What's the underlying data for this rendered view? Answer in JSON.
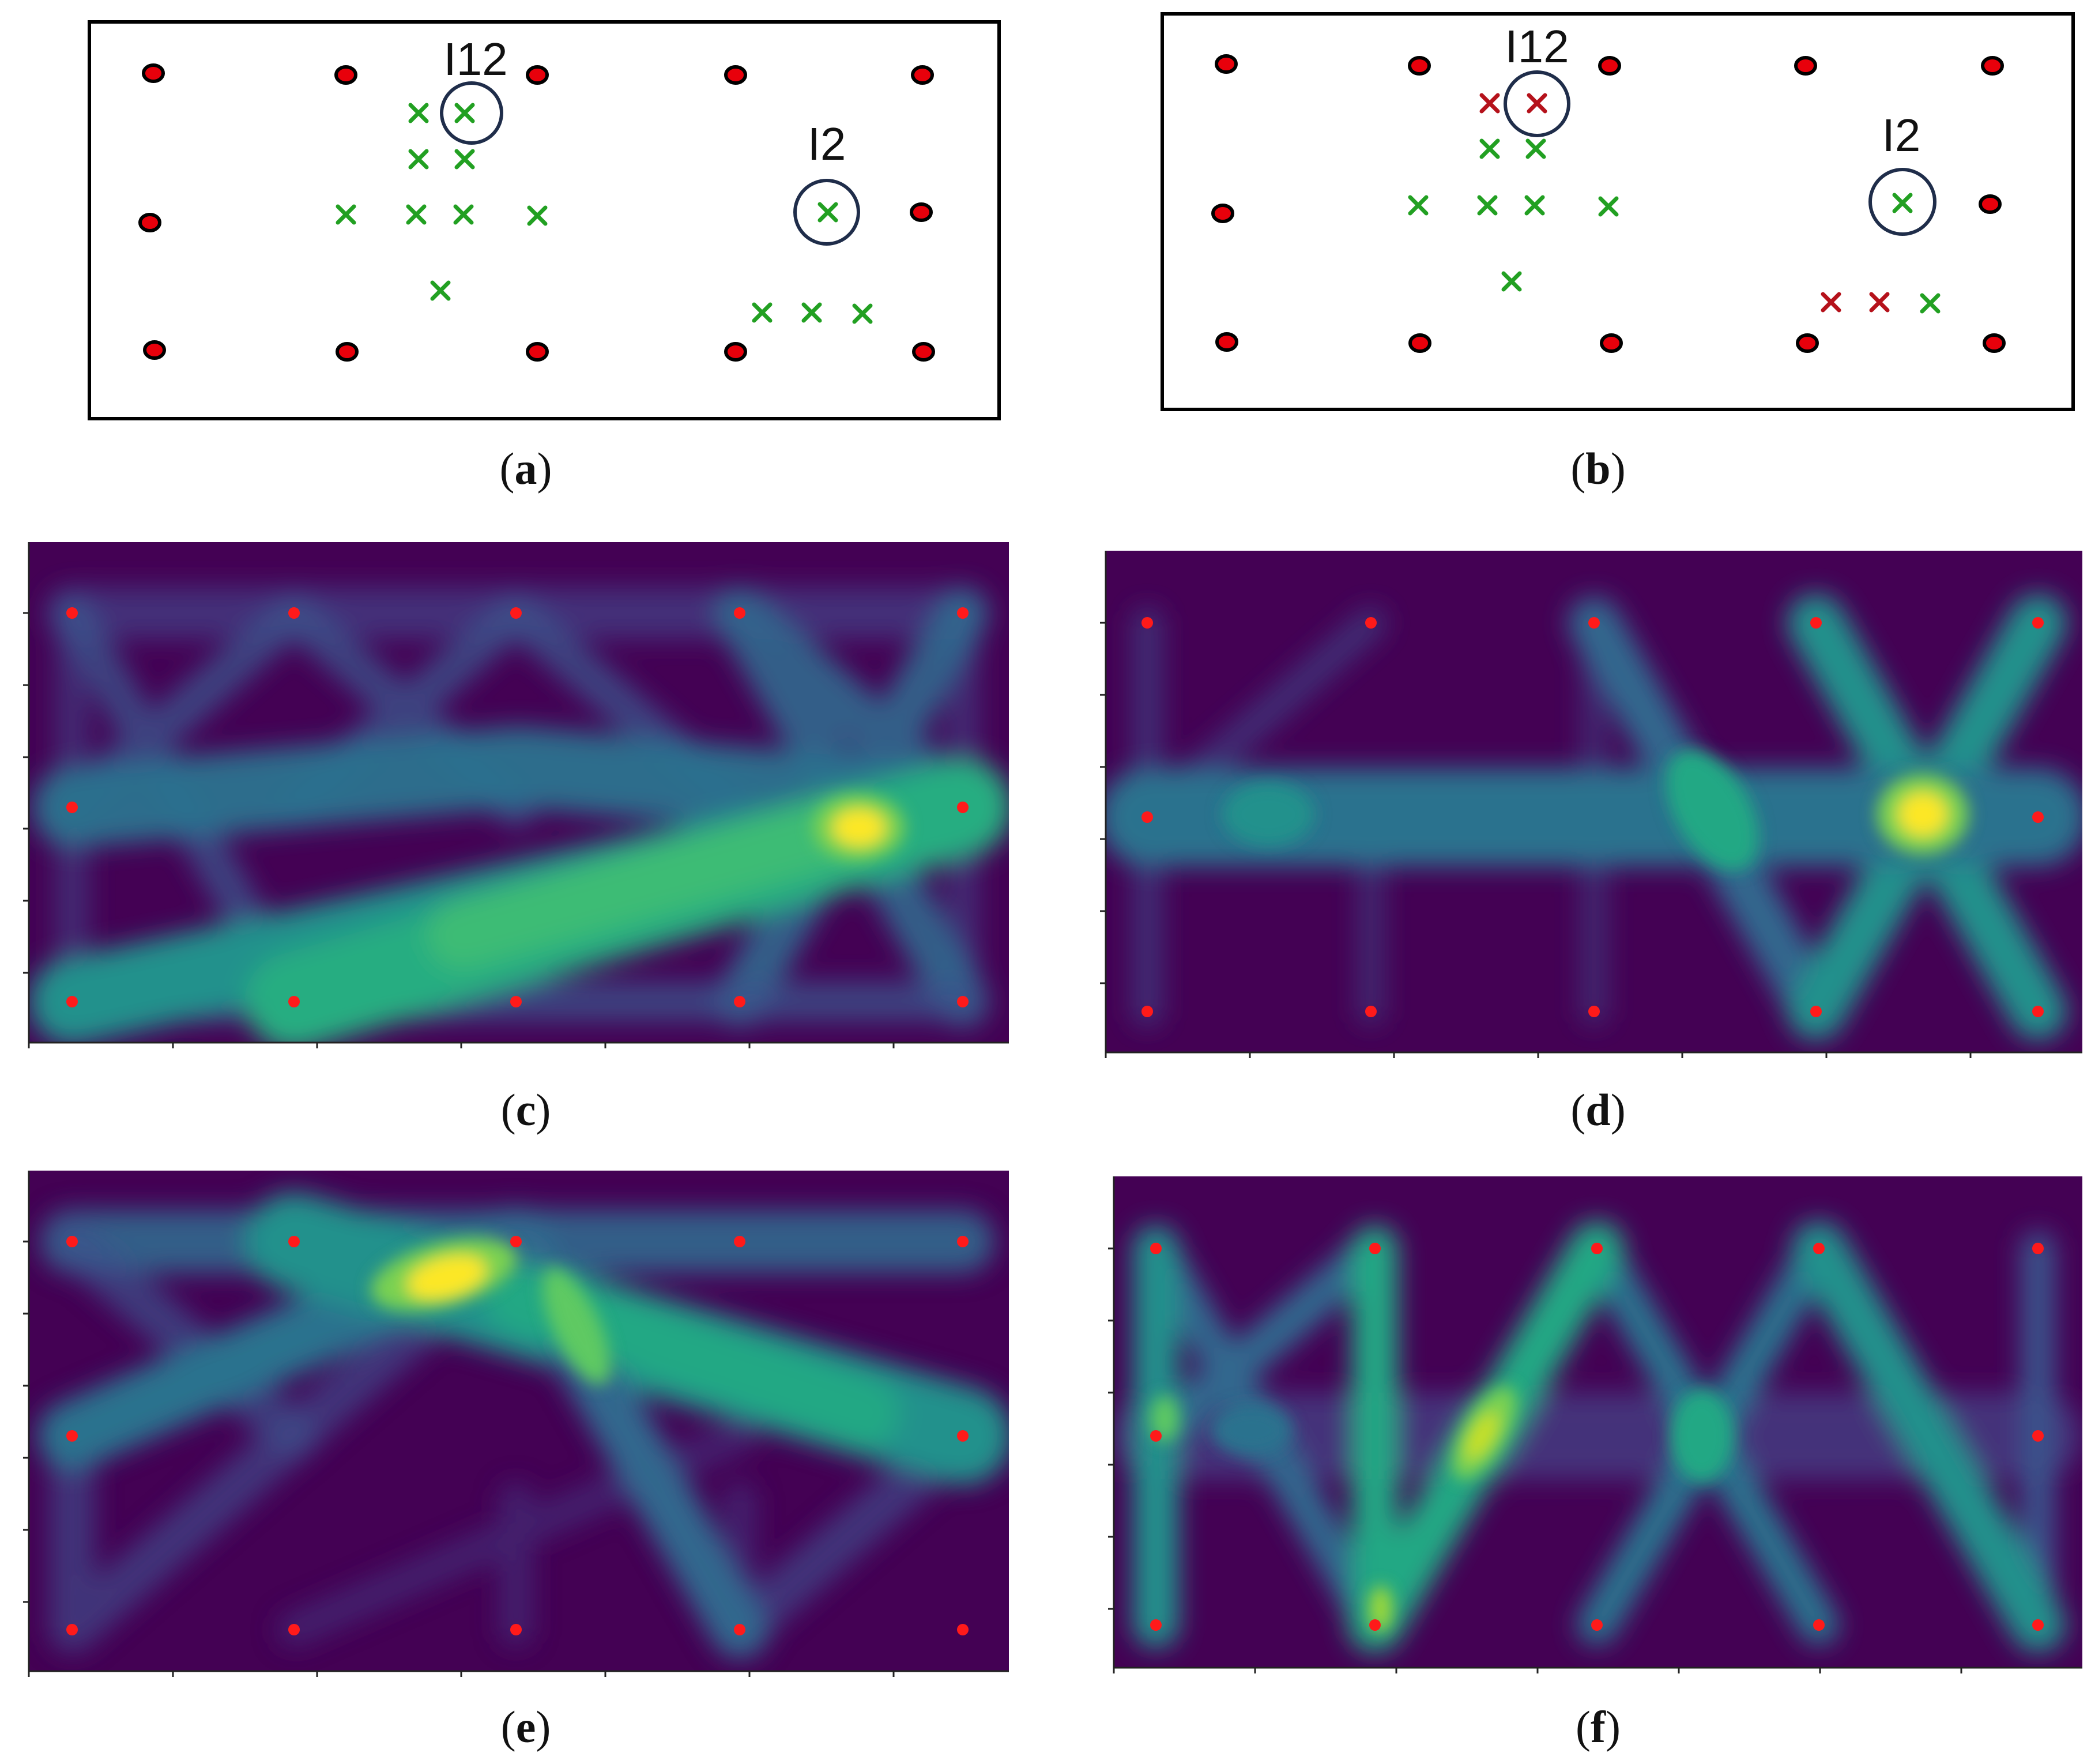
{
  "figure": {
    "panels": [
      {
        "id": "a",
        "caption_letter": "a",
        "type": "sensor-layout",
        "labels": [
          "I12",
          "I2"
        ]
      },
      {
        "id": "b",
        "caption_letter": "b",
        "type": "sensor-layout",
        "labels": [
          "I12",
          "I2"
        ]
      },
      {
        "id": "c",
        "caption_letter": "c",
        "type": "heatmap"
      },
      {
        "id": "d",
        "caption_letter": "d",
        "type": "heatmap"
      },
      {
        "id": "e",
        "caption_letter": "e",
        "type": "heatmap"
      },
      {
        "id": "f",
        "caption_letter": "f",
        "type": "heatmap"
      }
    ],
    "colors": {
      "sensor": "#e8000b",
      "valid_marker": "#22a022",
      "missing_marker": "#b5121b",
      "highlight_ring": "#1f2d4a",
      "heatmap_bg": "#440154",
      "viridis": [
        "#440154",
        "#414487",
        "#2a788e",
        "#22a884",
        "#7ad151",
        "#fde725"
      ]
    }
  }
}
